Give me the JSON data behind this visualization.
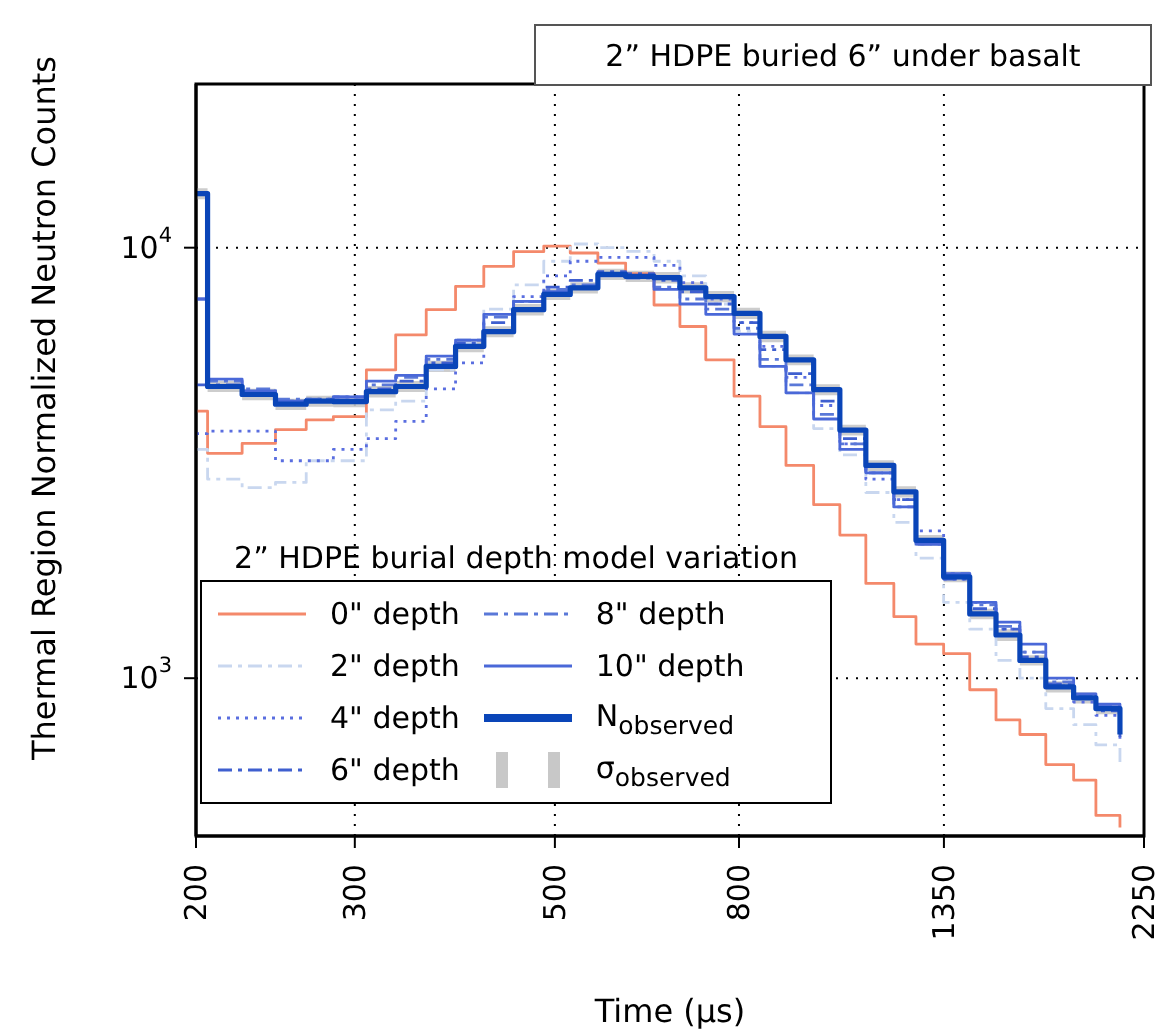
{
  "chart_data": {
    "type": "step",
    "title": "2” HDPE buried 6” under basalt",
    "xlabel": "Time (μs)",
    "ylabel": "Thermal Region Normalized Neutron Counts",
    "legend_title": "2” HDPE burial depth model variation",
    "log": "xy",
    "grid": true,
    "legend": "bottom left",
    "xlim": [
      200,
      2250
    ],
    "xticks": [
      200,
      300,
      500,
      800,
      1350,
      2250
    ],
    "ylim": [
      430,
      24000
    ],
    "yticks": [
      {
        "value": 1000,
        "label": "10$^{3}$"
      },
      {
        "value": 10000,
        "label": "10$^{4}$"
      }
    ],
    "x": [
      200,
      206,
      225,
      245,
      265,
      284,
      309,
      333,
      360,
      388,
      417,
      450,
      486,
      520,
      558,
      599,
      644,
      688,
      735,
      790,
      844,
      902,
      968,
      1035,
      1106,
      1188,
      1257,
      1349,
      1442,
      1542,
      1639,
      1751,
      1880,
      1990,
      2116
    ],
    "series": [
      {
        "name": "0\" depth",
        "color": "#f4896b",
        "line_style": "solid",
        "values": [
          4170,
          3330,
          3510,
          3780,
          3980,
          4050,
          5200,
          6270,
          7180,
          8130,
          9050,
          9790,
          10080,
          9720,
          9210,
          8700,
          7360,
          6560,
          5490,
          4520,
          3840,
          3120,
          2530,
          2150,
          1660,
          1390,
          1200,
          1140,
          940,
          800,
          740,
          630,
          580,
          480,
          450
        ]
      },
      {
        "name": "2\" depth",
        "color": "#c9d7ef",
        "line_style": "dashed",
        "values": [
          3400,
          2900,
          2770,
          2850,
          3200,
          3200,
          4200,
          4400,
          5200,
          6000,
          7200,
          8200,
          9300,
          10200,
          10000,
          9800,
          9300,
          8600,
          7400,
          6400,
          5300,
          4600,
          3800,
          3300,
          2700,
          2300,
          1900,
          1500,
          1300,
          1100,
          1000,
          850,
          780,
          700,
          620
        ]
      },
      {
        "name": "4\" depth",
        "color": "#5a6ee0",
        "line_style": "dotted",
        "values": [
          3700,
          3750,
          3750,
          3200,
          3200,
          3400,
          3600,
          3950,
          4700,
          5400,
          6400,
          7700,
          8600,
          9300,
          9500,
          9500,
          9100,
          8300,
          7600,
          6700,
          5900,
          5000,
          4300,
          3500,
          2900,
          2600,
          2200,
          1700,
          1500,
          1300,
          1150,
          960,
          880,
          820,
          720
        ]
      },
      {
        "name": "6\" depth",
        "color": "#3f5fcf",
        "line_style": "dashed",
        "values": [
          4800,
          4800,
          4600,
          4400,
          4450,
          4500,
          4700,
          4900,
          5400,
          6000,
          6700,
          7500,
          8100,
          8400,
          8800,
          8700,
          8400,
          7900,
          7400,
          6700,
          5800,
          5100,
          4400,
          3600,
          3000,
          2600,
          2050,
          1700,
          1450,
          1300,
          1120,
          970,
          900,
          840,
          730
        ]
      },
      {
        "name": "8\" depth",
        "color": "#5a78d8",
        "line_style": "dashed",
        "values": [
          7600,
          4900,
          4700,
          4450,
          4450,
          4500,
          4800,
          5000,
          5500,
          6100,
          6900,
          7500,
          8000,
          8200,
          8700,
          8500,
          8100,
          7600,
          7200,
          6500,
          5500,
          4800,
          4100,
          3500,
          3000,
          2500,
          2050,
          1750,
          1480,
          1320,
          1150,
          980,
          910,
          860,
          750
        ]
      },
      {
        "name": "10\" depth",
        "color": "#4a68d8",
        "line_style": "solid",
        "values": [
          7600,
          4950,
          4650,
          4400,
          4400,
          4500,
          4900,
          5050,
          5600,
          6100,
          7000,
          7500,
          7900,
          8100,
          8600,
          8550,
          8000,
          7400,
          7000,
          6300,
          5300,
          4600,
          4000,
          3400,
          3000,
          2500,
          2050,
          1750,
          1500,
          1350,
          1200,
          1000,
          920,
          870,
          760
        ]
      },
      {
        "name": "N$_{observed}$",
        "color": "#0a45b8",
        "line_style": "solid",
        "values": [
          13350,
          4760,
          4560,
          4330,
          4400,
          4390,
          4630,
          4760,
          5300,
          5900,
          6380,
          7180,
          7790,
          8070,
          8670,
          8580,
          8520,
          8070,
          7700,
          7040,
          6220,
          5490,
          4680,
          3770,
          3120,
          2710,
          2090,
          1720,
          1410,
          1260,
          1100,
          955,
          900,
          850,
          740
        ]
      },
      {
        "name": "σ$_{observed}$",
        "color": "#c8c8c8",
        "type": "area",
        "values": [
          null,
          null,
          null,
          null,
          null,
          null,
          null,
          null,
          null,
          null,
          null,
          null,
          null,
          null,
          null,
          null,
          null,
          null,
          null,
          null,
          null,
          null,
          null,
          null,
          null,
          null,
          null,
          null,
          null,
          null,
          null,
          null,
          null,
          null,
          null
        ],
        "lower": [
          12950,
          4620,
          4420,
          4200,
          4270,
          4260,
          4490,
          4620,
          5140,
          5720,
          6190,
          6960,
          7560,
          7830,
          8410,
          8320,
          8260,
          7830,
          7470,
          6830,
          6030,
          5330,
          4540,
          3660,
          3030,
          2630,
          2030,
          1670,
          1370,
          1220,
          1070,
          926,
          873,
          825,
          718
        ],
        "upper": [
          13750,
          4900,
          4700,
          4460,
          4530,
          4520,
          4770,
          4900,
          5460,
          6080,
          6570,
          7400,
          8020,
          8310,
          8930,
          8840,
          8780,
          8310,
          7930,
          7250,
          6410,
          5650,
          4820,
          3880,
          3210,
          2790,
          2150,
          1770,
          1450,
          1300,
          1130,
          984,
          927,
          876,
          762
        ]
      }
    ]
  }
}
